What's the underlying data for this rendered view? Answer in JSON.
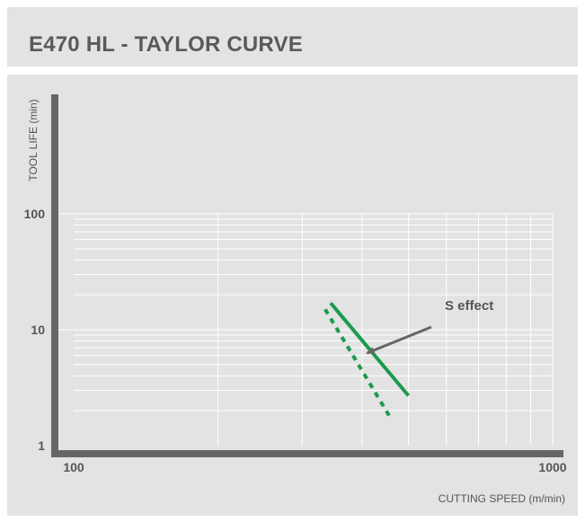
{
  "title": "E470 HL - TAYLOR CURVE",
  "colors": {
    "panel_bg": "#e3e3e3",
    "axis": "#666666",
    "grid": "#ffffff",
    "series": "#1b9a4f",
    "arrow": "#666666",
    "text": "#555555"
  },
  "chart_data": {
    "type": "line",
    "title": "E470 HL - TAYLOR CURVE",
    "xlabel": "CUTTING SPEED (m/min)",
    "ylabel": "TOOL LIFE (min)",
    "x_scale": "log",
    "y_scale": "log",
    "xlim": [
      100,
      1000
    ],
    "ylim": [
      1,
      100
    ],
    "x_ticks": [
      100,
      1000
    ],
    "x_tick_labels": [
      "100",
      "1000"
    ],
    "y_ticks": [
      1,
      10,
      100
    ],
    "y_tick_labels": [
      "1",
      "10",
      "100"
    ],
    "grid": true,
    "series": [
      {
        "style": "solid",
        "x": [
          344,
          500
        ],
        "y": [
          17,
          2.7
        ]
      },
      {
        "style": "dashed",
        "x": [
          335,
          460
        ],
        "y": [
          15,
          1.7
        ]
      }
    ],
    "annotations": [
      {
        "text": "S effect",
        "arrow_to_x": 410,
        "arrow_to_y": 6.3
      }
    ]
  }
}
